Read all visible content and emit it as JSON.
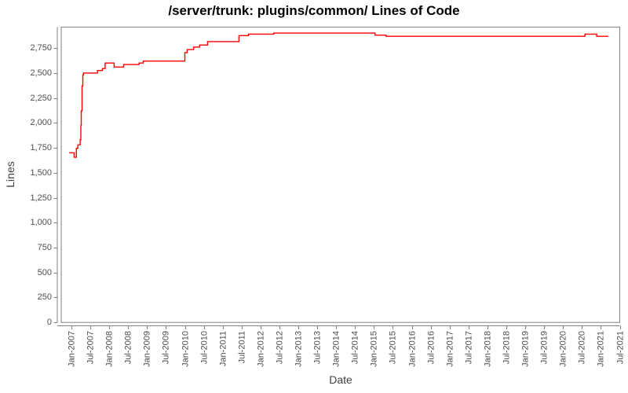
{
  "title": "/server/trunk: plugins/common/ Lines of Code",
  "chart_data": {
    "type": "line",
    "line_style": "step-after",
    "title": "/server/trunk: plugins/common/ Lines of Code",
    "xlabel": "Date",
    "ylabel": "Lines",
    "series_name": "Lines of Code",
    "series_color": "#ff0000",
    "plot_border_color": "#808080",
    "axis_color": "#808080",
    "tick_label_color": "#4d4d4d",
    "background_color": "#ffffff",
    "grid": false,
    "legend": false,
    "xlim": [
      2006.73,
      2021.5
    ],
    "ylim": [
      0,
      2960
    ],
    "y_ticks": [
      {
        "v": 0,
        "label": "0"
      },
      {
        "v": 250,
        "label": "250"
      },
      {
        "v": 500,
        "label": "500"
      },
      {
        "v": 750,
        "label": "750"
      },
      {
        "v": 1000,
        "label": "1,000"
      },
      {
        "v": 1250,
        "label": "1,250"
      },
      {
        "v": 1500,
        "label": "1,500"
      },
      {
        "v": 1750,
        "label": "1,750"
      },
      {
        "v": 2000,
        "label": "2,000"
      },
      {
        "v": 2250,
        "label": "2,250"
      },
      {
        "v": 2500,
        "label": "2,500"
      },
      {
        "v": 2750,
        "label": "2,750"
      }
    ],
    "x_ticks": [
      {
        "t": 2007.0,
        "label": "Jan-2007"
      },
      {
        "t": 2007.5,
        "label": "Jul-2007"
      },
      {
        "t": 2008.0,
        "label": "Jan-2008"
      },
      {
        "t": 2008.5,
        "label": "Jul-2008"
      },
      {
        "t": 2009.0,
        "label": "Jan-2009"
      },
      {
        "t": 2009.5,
        "label": "Jul-2009"
      },
      {
        "t": 2010.0,
        "label": "Jan-2010"
      },
      {
        "t": 2010.5,
        "label": "Jul-2010"
      },
      {
        "t": 2011.0,
        "label": "Jan-2011"
      },
      {
        "t": 2011.5,
        "label": "Jul-2011"
      },
      {
        "t": 2012.0,
        "label": "Jan-2012"
      },
      {
        "t": 2012.5,
        "label": "Jul-2012"
      },
      {
        "t": 2013.0,
        "label": "Jan-2013"
      },
      {
        "t": 2013.5,
        "label": "Jul-2013"
      },
      {
        "t": 2014.0,
        "label": "Jan-2014"
      },
      {
        "t": 2014.5,
        "label": "Jul-2014"
      },
      {
        "t": 2015.0,
        "label": "Jan-2015"
      },
      {
        "t": 2015.5,
        "label": "Jul-2015"
      },
      {
        "t": 2016.0,
        "label": "Jan-2016"
      },
      {
        "t": 2016.5,
        "label": "Jul-2016"
      },
      {
        "t": 2017.0,
        "label": "Jan-2017"
      },
      {
        "t": 2017.5,
        "label": "Jul-2017"
      },
      {
        "t": 2018.0,
        "label": "Jan-2018"
      },
      {
        "t": 2018.5,
        "label": "Jul-2018"
      },
      {
        "t": 2019.0,
        "label": "Jan-2019"
      },
      {
        "t": 2019.5,
        "label": "Jul-2019"
      },
      {
        "t": 2020.0,
        "label": "Jan-2020"
      },
      {
        "t": 2020.5,
        "label": "Jul-2020"
      },
      {
        "t": 2021.0,
        "label": "Jan-2021"
      },
      {
        "t": 2021.5,
        "label": "Jul-2021"
      }
    ],
    "points": [
      [
        2006.94,
        1700
      ],
      [
        2007.07,
        1655
      ],
      [
        2007.13,
        1745
      ],
      [
        2007.17,
        1780
      ],
      [
        2007.23,
        1830
      ],
      [
        2007.25,
        1975
      ],
      [
        2007.26,
        2120
      ],
      [
        2007.28,
        2370
      ],
      [
        2007.3,
        2480
      ],
      [
        2007.32,
        2500
      ],
      [
        2007.69,
        2525
      ],
      [
        2007.82,
        2545
      ],
      [
        2007.89,
        2600
      ],
      [
        2008.13,
        2560
      ],
      [
        2008.38,
        2585
      ],
      [
        2008.79,
        2600
      ],
      [
        2008.9,
        2620
      ],
      [
        2010.0,
        2705
      ],
      [
        2010.06,
        2735
      ],
      [
        2010.23,
        2760
      ],
      [
        2010.39,
        2780
      ],
      [
        2010.6,
        2815
      ],
      [
        2011.43,
        2875
      ],
      [
        2011.68,
        2890
      ],
      [
        2012.35,
        2900
      ],
      [
        2015.03,
        2880
      ],
      [
        2015.32,
        2868
      ],
      [
        2020.58,
        2890
      ],
      [
        2020.89,
        2868
      ],
      [
        2021.2,
        2868
      ]
    ]
  }
}
